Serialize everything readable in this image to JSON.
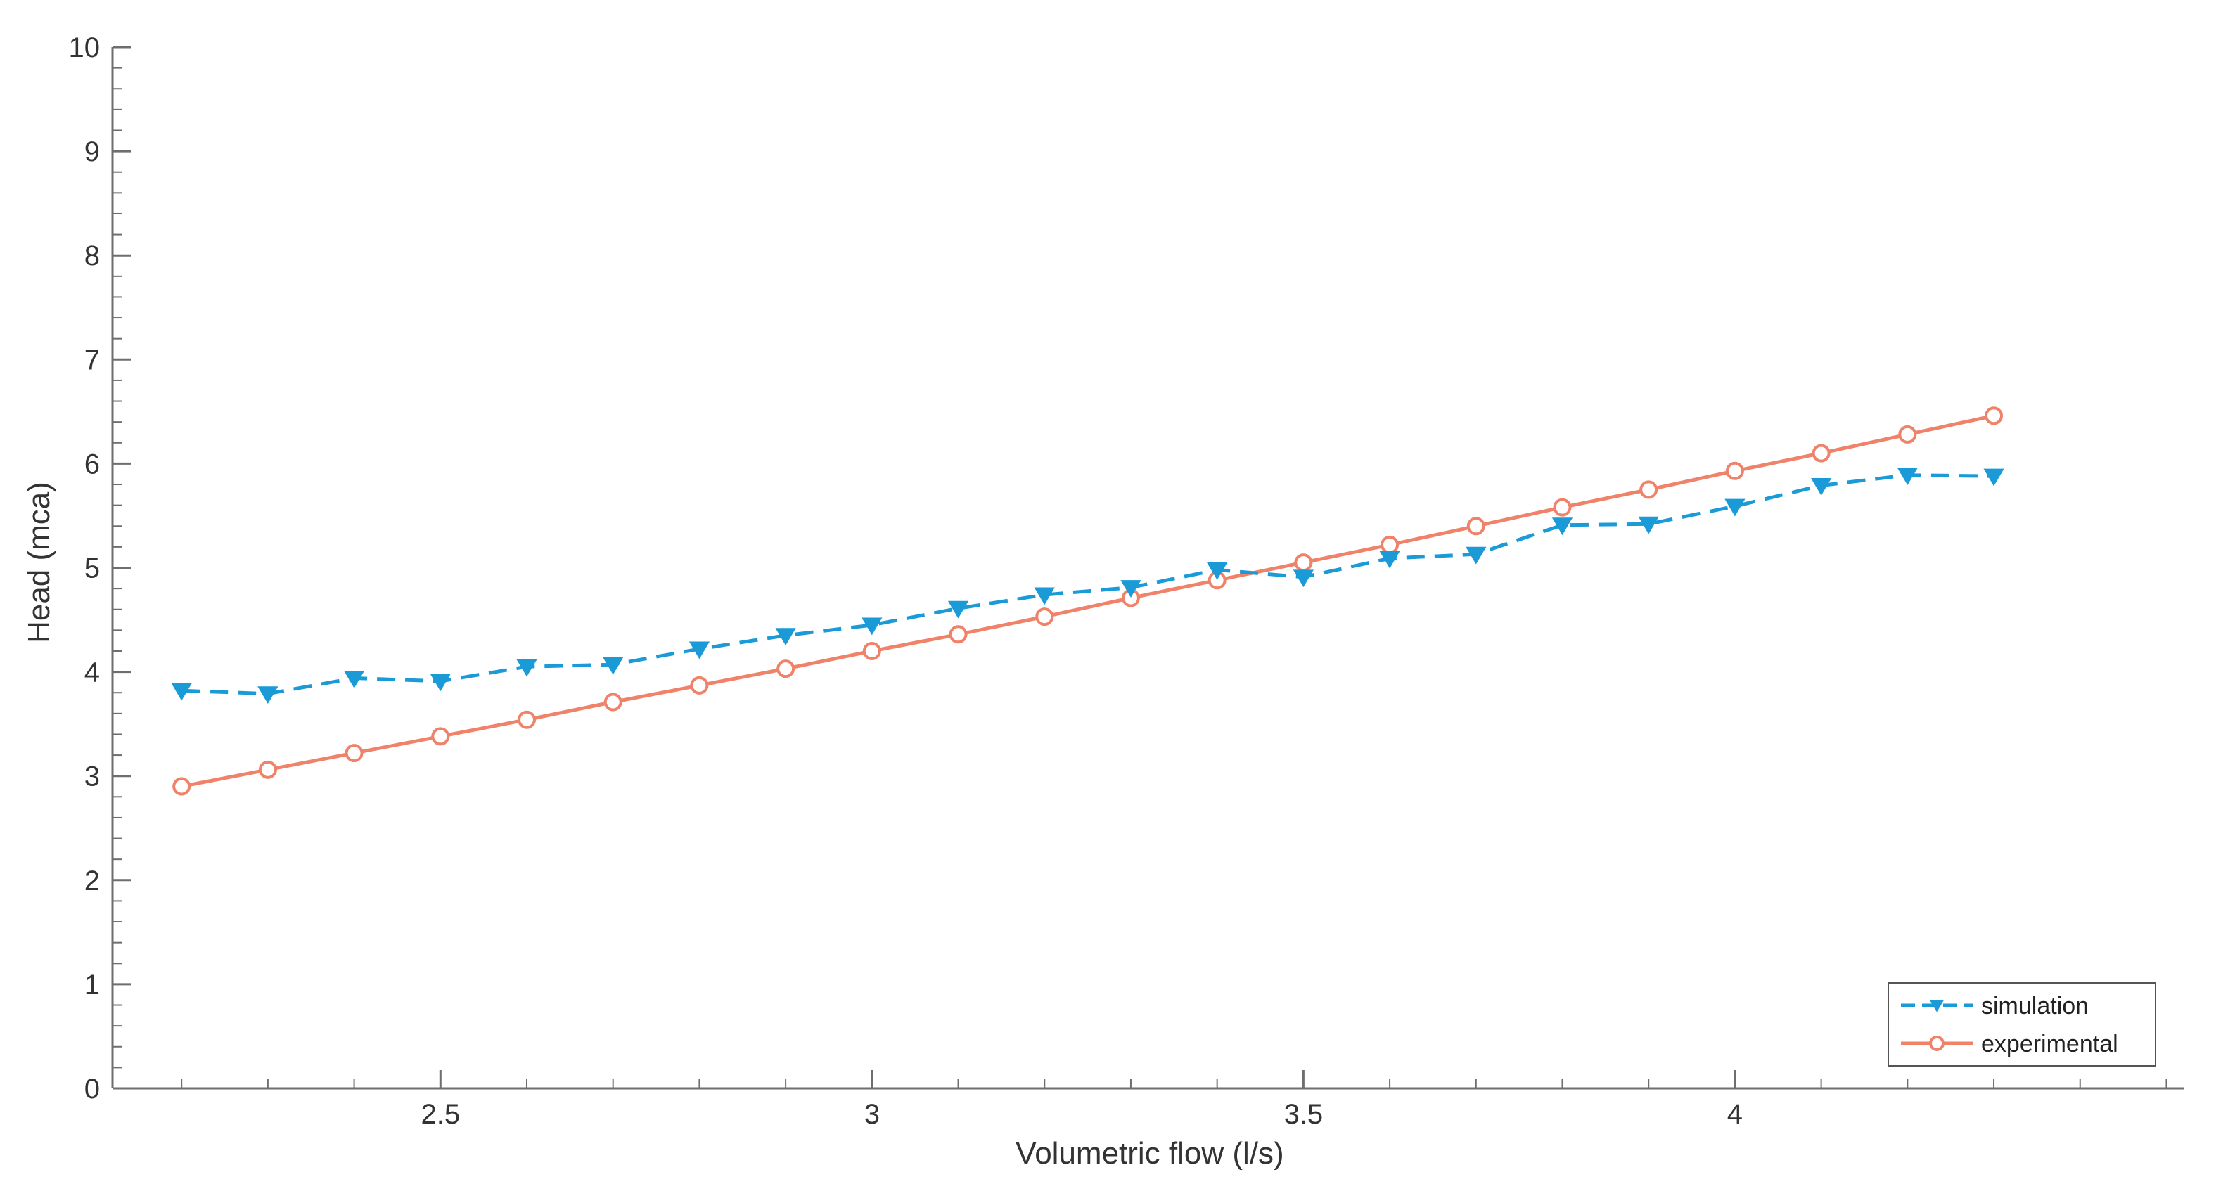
{
  "chart_data": {
    "type": "line",
    "title": "",
    "xlabel": "Volumetric flow (l/s)",
    "ylabel": "Head (mca)",
    "xlim": [
      2.12,
      4.52
    ],
    "ylim": [
      0,
      10
    ],
    "xticks": [
      2.5,
      3,
      3.5,
      4
    ],
    "xtick_labels": [
      "2.5",
      "3",
      "3.5",
      "4"
    ],
    "yticks": [
      0,
      1,
      2,
      3,
      4,
      5,
      6,
      7,
      8,
      9,
      10
    ],
    "ytick_labels": [
      "0",
      "1",
      "2",
      "3",
      "4",
      "5",
      "6",
      "7",
      "8",
      "9",
      "10"
    ],
    "x_minor_step": 0.1,
    "y_minor_step": 0.2,
    "grid": false,
    "legend_position": "bottom-right",
    "x": [
      2.2,
      2.3,
      2.4,
      2.5,
      2.6,
      2.7,
      2.8,
      2.9,
      3.0,
      3.1,
      3.2,
      3.3,
      3.4,
      3.5,
      3.6,
      3.7,
      3.8,
      3.9,
      4.0,
      4.1,
      4.2,
      4.3
    ],
    "series": [
      {
        "name": "simulation",
        "color": "#1a9ad6",
        "line_style": "dashed",
        "marker": "down-triangle",
        "values": [
          3.82,
          3.79,
          3.94,
          3.91,
          4.05,
          4.07,
          4.22,
          4.35,
          4.45,
          4.61,
          4.74,
          4.81,
          4.98,
          4.91,
          5.09,
          5.13,
          5.41,
          5.42,
          5.59,
          5.79,
          5.89,
          5.88
        ]
      },
      {
        "name": "experimental",
        "color": "#f0826a",
        "line_style": "solid",
        "marker": "circle",
        "values": [
          2.9,
          3.06,
          3.22,
          3.38,
          3.54,
          3.71,
          3.87,
          4.03,
          4.2,
          4.36,
          4.53,
          4.71,
          4.88,
          5.05,
          5.22,
          5.4,
          5.58,
          5.75,
          5.93,
          6.1,
          6.28,
          6.46
        ]
      }
    ]
  }
}
